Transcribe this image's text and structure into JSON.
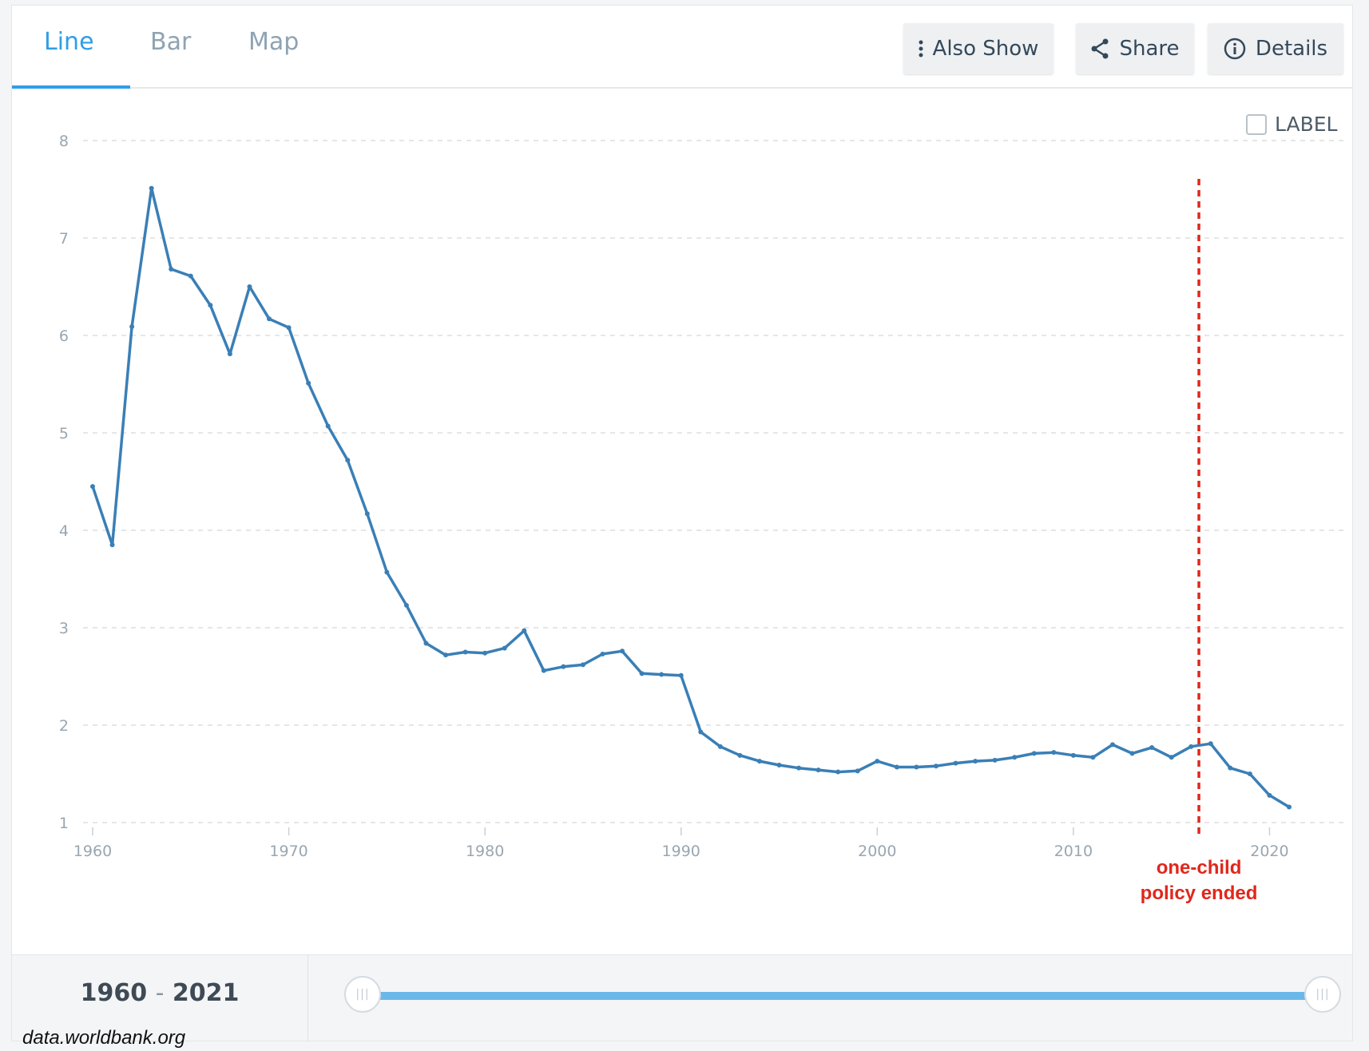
{
  "tabs": [
    {
      "label": "Line",
      "active": true
    },
    {
      "label": "Bar",
      "active": false
    },
    {
      "label": "Map",
      "active": false
    }
  ],
  "toolbar": {
    "also_show_label": "Also Show",
    "share_label": "Share",
    "details_label": "Details"
  },
  "label_toggle": {
    "text": "LABEL",
    "checked": false
  },
  "colors": {
    "line": "#3a7fb6",
    "accent": "#2f9ee6",
    "annotation": "#e0271b",
    "grid": "#dddddd",
    "tick_text": "#9aa6b0"
  },
  "range": {
    "start": "1960",
    "separator": "-",
    "end": "2021"
  },
  "slider": {
    "start_fraction": 0.0,
    "end_fraction": 1.0
  },
  "watermark": "data.worldbank.org",
  "chart_data": {
    "type": "line",
    "title": "",
    "xlabel": "",
    "ylabel": "",
    "xlim": [
      1960,
      2021
    ],
    "ylim": [
      1,
      8
    ],
    "yticks": [
      1,
      2,
      3,
      4,
      5,
      6,
      7,
      8
    ],
    "xticks": [
      1960,
      1970,
      1980,
      1990,
      2000,
      2010,
      2020
    ],
    "grid": true,
    "legend": "none",
    "series": [
      {
        "x": [
          1960,
          1961,
          1962,
          1963,
          1964,
          1965,
          1966,
          1967,
          1968,
          1969,
          1970,
          1971,
          1972,
          1973,
          1974,
          1975,
          1976,
          1977,
          1978,
          1979,
          1980,
          1981,
          1982,
          1983,
          1984,
          1985,
          1986,
          1987,
          1988,
          1989,
          1990,
          1991,
          1992,
          1993,
          1994,
          1995,
          1996,
          1997,
          1998,
          1999,
          2000,
          2001,
          2002,
          2003,
          2004,
          2005,
          2006,
          2007,
          2008,
          2009,
          2010,
          2011,
          2012,
          2013,
          2014,
          2015,
          2016,
          2017,
          2018,
          2019,
          2020,
          2021
        ],
        "values": [
          4.45,
          3.85,
          6.09,
          7.51,
          6.68,
          6.61,
          6.31,
          5.81,
          6.5,
          6.17,
          6.08,
          5.51,
          5.07,
          4.72,
          4.17,
          3.57,
          3.23,
          2.84,
          2.72,
          2.75,
          2.74,
          2.79,
          2.97,
          2.56,
          2.6,
          2.62,
          2.73,
          2.76,
          2.53,
          2.52,
          2.51,
          1.93,
          1.78,
          1.69,
          1.63,
          1.59,
          1.56,
          1.54,
          1.52,
          1.53,
          1.63,
          1.57,
          1.57,
          1.58,
          1.61,
          1.63,
          1.64,
          1.67,
          1.71,
          1.72,
          1.69,
          1.67,
          1.8,
          1.71,
          1.77,
          1.67,
          1.78,
          1.81,
          1.56,
          1.5,
          1.28,
          1.16
        ]
      }
    ],
    "annotations": [
      {
        "x": 2016.4,
        "label_line1": "one-child",
        "label_line2": "policy ended"
      }
    ]
  }
}
